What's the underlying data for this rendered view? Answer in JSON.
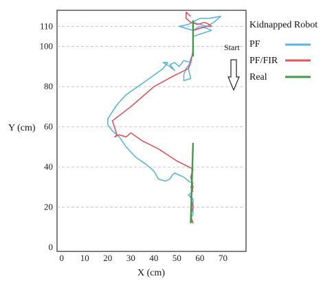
{
  "chart_data": {
    "type": "line",
    "title": "Kidnapped Robot",
    "xlabel": "X (cm)",
    "ylabel": "Y (cm)",
    "xlim": [
      -2,
      80
    ],
    "ylim": [
      -2,
      118
    ],
    "x_ticks": [
      0,
      10,
      20,
      30,
      40,
      50,
      60,
      70
    ],
    "y_ticks": [
      0,
      20,
      40,
      60,
      80,
      100,
      110
    ],
    "grid": true,
    "legend_position": "right",
    "annotation": "Start",
    "series": [
      {
        "name": "PF",
        "color": "#5ab4e0",
        "points": [
          [
            57,
            112
          ],
          [
            60,
            111
          ],
          [
            63,
            110
          ],
          [
            66,
            112
          ],
          [
            69,
            115
          ],
          [
            64,
            114
          ],
          [
            60,
            114
          ],
          [
            55,
            111
          ],
          [
            51,
            110
          ],
          [
            54,
            109
          ],
          [
            57,
            108
          ],
          [
            60,
            110
          ],
          [
            63,
            109
          ],
          [
            65,
            108
          ],
          [
            57,
            105
          ],
          [
            57,
            100
          ],
          [
            57,
            96
          ],
          [
            56,
            94
          ],
          [
            55,
            89
          ],
          [
            56,
            84
          ],
          [
            53,
            83
          ],
          [
            53,
            86
          ],
          [
            54,
            89
          ],
          [
            56,
            92
          ],
          [
            53,
            93
          ],
          [
            51,
            90
          ],
          [
            49,
            92
          ],
          [
            47,
            91
          ],
          [
            49,
            88
          ],
          [
            47,
            90
          ],
          [
            44,
            92
          ],
          [
            46,
            92
          ],
          [
            44,
            89
          ],
          [
            38,
            84
          ],
          [
            33,
            80
          ],
          [
            28,
            76
          ],
          [
            24,
            71
          ],
          [
            20,
            64
          ],
          [
            20,
            61
          ],
          [
            22,
            58
          ],
          [
            25,
            55
          ],
          [
            28,
            50
          ],
          [
            32,
            45
          ],
          [
            37,
            41
          ],
          [
            40,
            38
          ],
          [
            42,
            34
          ],
          [
            45,
            33
          ],
          [
            47,
            34
          ],
          [
            48,
            36
          ],
          [
            49,
            37
          ],
          [
            51,
            36
          ],
          [
            53,
            35
          ],
          [
            55,
            33
          ],
          [
            57,
            32
          ],
          [
            56,
            30
          ],
          [
            57,
            28
          ],
          [
            55,
            26
          ],
          [
            57,
            24
          ],
          [
            57,
            20
          ],
          [
            57,
            17
          ],
          [
            56,
            14
          ],
          [
            57,
            12
          ]
        ]
      },
      {
        "name": "PF/FIR",
        "color": "#e2545c",
        "points": [
          [
            56,
            115
          ],
          [
            54,
            117
          ],
          [
            54,
            114
          ],
          [
            56,
            112
          ],
          [
            59,
            111
          ],
          [
            62,
            112
          ],
          [
            64,
            111
          ],
          [
            65,
            110
          ],
          [
            63,
            110
          ],
          [
            57,
            108
          ],
          [
            57,
            104
          ],
          [
            57,
            98
          ],
          [
            56,
            92
          ],
          [
            55,
            89
          ],
          [
            48,
            85
          ],
          [
            40,
            80
          ],
          [
            30,
            70
          ],
          [
            22,
            63
          ],
          [
            24,
            56
          ],
          [
            23,
            55
          ],
          [
            25,
            56
          ],
          [
            28,
            55
          ],
          [
            30,
            57
          ],
          [
            35,
            53
          ],
          [
            42,
            49
          ],
          [
            50,
            43
          ],
          [
            57,
            39
          ],
          [
            56,
            35
          ],
          [
            57,
            30
          ],
          [
            56,
            25
          ],
          [
            57,
            20
          ],
          [
            56,
            16
          ],
          [
            57,
            12
          ]
        ]
      },
      {
        "name": "Real",
        "color": "#3d9b4a",
        "points": [
          [
            57,
            113
          ],
          [
            57,
            95
          ]
        ],
        "points_2": [
          [
            57,
            52
          ],
          [
            56,
            12
          ]
        ]
      }
    ]
  }
}
